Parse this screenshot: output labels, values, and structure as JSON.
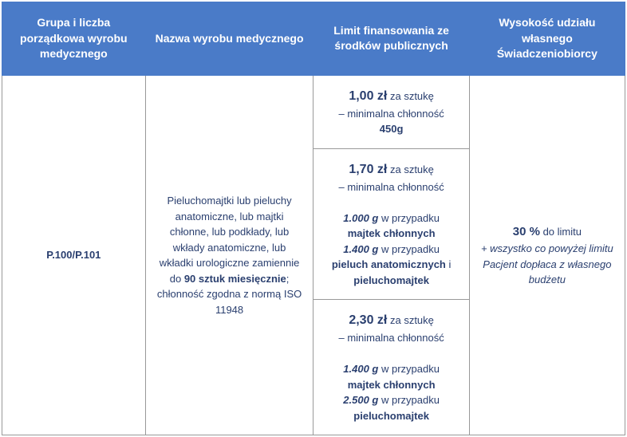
{
  "headers": {
    "col1": "Grupa i liczba porządkowa wyrobu medycznego",
    "col2": "Nazwa wyrobu medycznego",
    "col3": "Limit finansowania ze środków publicznych",
    "col4": "Wysokość udziału własnego Świadczeniobiorcy"
  },
  "code": "P.100/P.101",
  "description": {
    "part1": "Pieluchomajtki lub pieluchy anatomiczne, lub majtki chłonne, lub podkłady, lub wkłady anatomiczne, lub wkładki urologiczne zamiennie do ",
    "qty": "90 sztuk miesięcznie",
    "part2": "; chłonność zgodna z normą ISO 11948"
  },
  "limits": {
    "row1": {
      "price": "1,00 zł",
      "unit": " za sztukę",
      "sub": "– minimalna chłonność",
      "weight": "450g"
    },
    "row2": {
      "price": "1,70 zł",
      "unit": " za sztukę",
      "sub": "– minimalna chłonność",
      "w1": "1.000 g",
      "t1": " w przypadku ",
      "p1": "majtek chłonnych",
      "w2": "1.400 g",
      "t2": " w przypadku ",
      "p2a": "pieluch anatomicznych",
      "and": " i ",
      "p2b": "pieluchomajtek"
    },
    "row3": {
      "price": "2,30 zł",
      "unit": " za sztukę",
      "sub": "– minimalna chłonność",
      "w1": "1.400 g",
      "t1": " w przypadku ",
      "p1": "majtek chłonnych",
      "w2": "2.500 g",
      "t2": " w przypadku ",
      "p2": "pieluchomajtek"
    }
  },
  "share": {
    "percent": "30 %",
    "text": " do limitu",
    "note": "+ wszystko co powyżej limitu Pacjent dopłaca z własnego budżetu"
  },
  "colors": {
    "header_bg": "#4a7bc8",
    "header_fg": "#ffffff",
    "border": "#999999",
    "text": "#2a3f6f"
  }
}
